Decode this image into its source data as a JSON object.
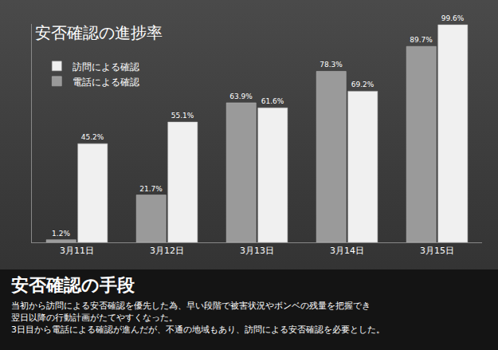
{
  "chart_data": {
    "type": "bar",
    "title": "安否確認の進捗率",
    "categories": [
      "3月11日",
      "3月12日",
      "3月13日",
      "3月14日",
      "3月15日"
    ],
    "series": [
      {
        "name": "電話による確認",
        "color": "#9a9a9a",
        "values": [
          1.2,
          21.7,
          63.9,
          78.3,
          89.7
        ],
        "value_labels": [
          "1.2%",
          "21.7%",
          "63.9%",
          "78.3%",
          "89.7%"
        ]
      },
      {
        "name": "訪問による確認",
        "color": "#f0f0f0",
        "values": [
          45.2,
          55.1,
          61.6,
          69.2,
          99.6
        ],
        "value_labels": [
          "45.2%",
          "55.1%",
          "61.6%",
          "69.2%",
          "99.6%"
        ]
      }
    ],
    "ylim": [
      0,
      100
    ],
    "grid": false,
    "legend": "top-left",
    "data_labels": true,
    "tick_labels": "x"
  },
  "note": {
    "title": "安否確認の手段",
    "lines": [
      "当初から訪問による安否確認を優先した為、早い段階で被害状況やボンベの残量を把握でき",
      "翌日以降の行動計画がたてやすくなった。",
      "3日目から電話による確認が進んだが、不通の地域もあり、訪問による安否確認を必要とした。"
    ]
  }
}
